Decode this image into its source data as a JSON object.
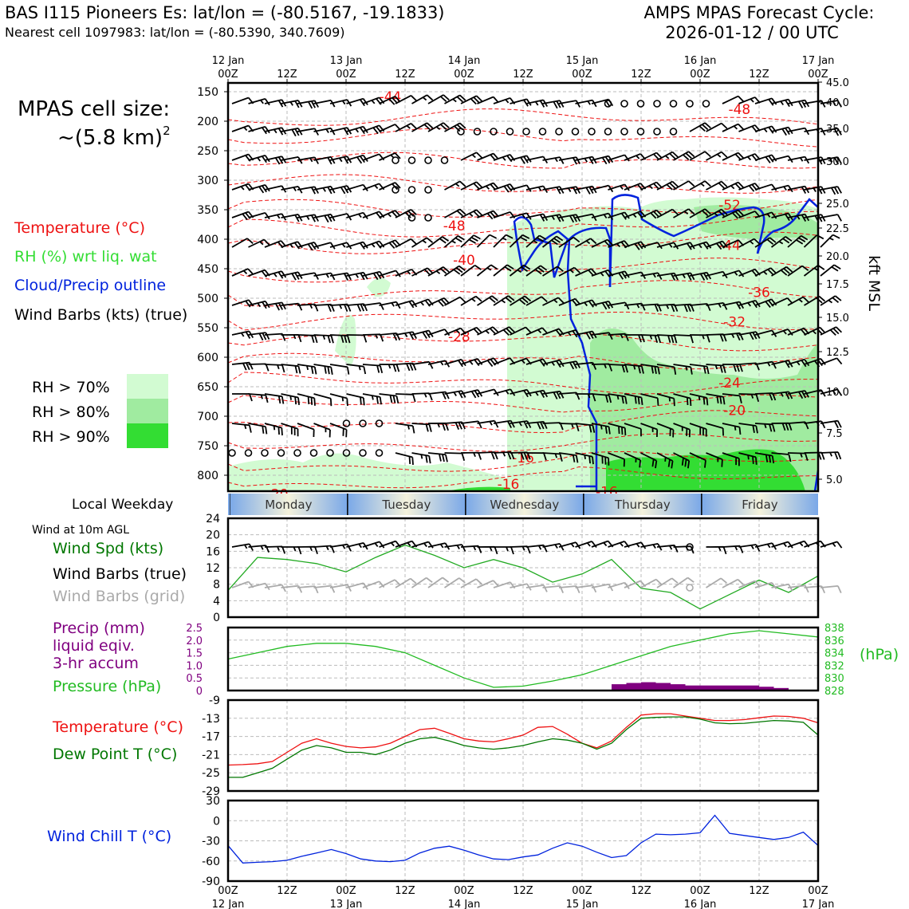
{
  "header": {
    "station": "BAS I115 Pioneers Es: lat/lon = (-80.5167, -19.1833)",
    "nearest": "Nearest cell 1097983: lat/lon = (-80.5390, 340.7609)",
    "cycle_title": "AMPS MPAS Forecast Cycle:",
    "cycle_time": "2026-01-12 / 00 UTC"
  },
  "cell_size": {
    "line1": "MPAS cell size:",
    "line2": "~(5.8 km)",
    "sup": "2"
  },
  "legend": {
    "temperature": "Temperature (°C)",
    "rh": "RH (%) wrt liq. wat",
    "cloud": "Cloud/Precip outline",
    "wind": "Wind Barbs (kts) (true)",
    "rh70": "RH > 70%",
    "rh80": "RH > 80%",
    "rh90": "RH > 90%"
  },
  "colors": {
    "rh70": "#d2fbd2",
    "rh80": "#a0eba0",
    "rh90": "#33dd33",
    "temp": "#ee1111",
    "cloud": "#0022dd",
    "grid": "#bbbbbb"
  },
  "time_axis": {
    "top_labels": [
      {
        "top": "12 Jan",
        "bot": "00Z"
      },
      {
        "top": "",
        "bot": "12Z"
      },
      {
        "top": "13 Jan",
        "bot": "00Z"
      },
      {
        "top": "",
        "bot": "12Z"
      },
      {
        "top": "14 Jan",
        "bot": "00Z"
      },
      {
        "top": "",
        "bot": "12Z"
      },
      {
        "top": "15 Jan",
        "bot": "00Z"
      },
      {
        "top": "",
        "bot": "12Z"
      },
      {
        "top": "16 Jan",
        "bot": "00Z"
      },
      {
        "top": "",
        "bot": "12Z"
      },
      {
        "top": "17 Jan",
        "bot": "00Z"
      }
    ],
    "bottom_labels": [
      {
        "top": "00Z",
        "bot": "12 Jan"
      },
      {
        "top": "12Z",
        "bot": ""
      },
      {
        "top": "00Z",
        "bot": "13 Jan"
      },
      {
        "top": "12Z",
        "bot": ""
      },
      {
        "top": "00Z",
        "bot": "14 Jan"
      },
      {
        "top": "12Z",
        "bot": ""
      },
      {
        "top": "00Z",
        "bot": "15 Jan"
      },
      {
        "top": "12Z",
        "bot": ""
      },
      {
        "top": "00Z",
        "bot": "16 Jan"
      },
      {
        "top": "12Z",
        "bot": ""
      },
      {
        "top": "00Z",
        "bot": "17 Jan"
      }
    ]
  },
  "weekday_bar": {
    "label": "Local Weekday",
    "days": [
      "Monday",
      "Tuesday",
      "Wednesday",
      "Thursday",
      "Friday"
    ]
  },
  "chart_data": [
    {
      "type": "time-height cross-section",
      "pressure_ticks": [
        150,
        200,
        250,
        300,
        350,
        400,
        450,
        500,
        550,
        600,
        650,
        700,
        750,
        800
      ],
      "kft_ticks": [
        "45.0",
        "40.0",
        "35.0",
        "30.0",
        "25.0",
        "22.5",
        "20.0",
        "17.5",
        "15.0",
        "12.5",
        "10.0",
        "7.5",
        "5.0"
      ],
      "right_label": "kft MSL",
      "temperature_labels": [
        {
          "t": "-44",
          "h": 33,
          "p": 158
        },
        {
          "t": "-48",
          "h": 104,
          "p": 180
        },
        {
          "t": "-52",
          "h": 102,
          "p": 342
        },
        {
          "t": "-48",
          "h": 46,
          "p": 377
        },
        {
          "t": "-44",
          "h": 102,
          "p": 410
        },
        {
          "t": "-40",
          "h": 48,
          "p": 435
        },
        {
          "t": "-36",
          "h": 108,
          "p": 490
        },
        {
          "t": "-32",
          "h": 103,
          "p": 540
        },
        {
          "t": "-28",
          "h": 47,
          "p": 565
        },
        {
          "t": "-24",
          "h": 102,
          "p": 643
        },
        {
          "t": "-20",
          "h": 103,
          "p": 690
        },
        {
          "t": "-16",
          "h": 60,
          "p": 770
        },
        {
          "t": "-16",
          "h": 57,
          "p": 815
        },
        {
          "t": "-16",
          "h": 77,
          "p": 828
        },
        {
          "t": "-20",
          "h": 10,
          "p": 832
        }
      ]
    },
    {
      "type": "line",
      "title_lines": [
        "Wind at 10m AGL"
      ],
      "series_labels": [
        "Wind Spd (kts)",
        "Wind Barbs (true)",
        "Wind Barbs (grid)"
      ],
      "yticks": [
        0,
        4,
        8,
        12,
        16,
        20,
        24
      ],
      "ylim": [
        0,
        24
      ],
      "x_hours": [
        0,
        6,
        12,
        18,
        24,
        30,
        36,
        42,
        48,
        54,
        60,
        66,
        72,
        78,
        84,
        90,
        96,
        102,
        108,
        114,
        120
      ],
      "series": [
        {
          "name": "Wind Spd (kts)",
          "values": [
            6.5,
            14.5,
            14,
            13,
            11,
            14.5,
            17.5,
            15,
            12,
            14,
            12,
            8.5,
            10.5,
            14,
            7,
            6,
            2,
            5.5,
            9,
            6,
            10
          ]
        }
      ]
    },
    {
      "type": "line",
      "series_labels": [
        "Precip (mm)",
        "liquid eqiv.",
        "3-hr accum",
        "Pressure (hPa)"
      ],
      "left_ticks": [
        "0",
        "0.5",
        "1.0",
        "1.5",
        "2.0",
        "2.5"
      ],
      "right_ticks": [
        "828",
        "830",
        "832",
        "834",
        "836",
        "838"
      ],
      "right_label": "(hPa)",
      "pressure_x_hours": [
        0,
        6,
        12,
        18,
        24,
        30,
        36,
        42,
        48,
        54,
        60,
        66,
        72,
        78,
        84,
        90,
        96,
        102,
        108,
        114,
        120
      ],
      "pressure_values": [
        833,
        834,
        835,
        835.5,
        835.5,
        835,
        834,
        832,
        830,
        828.5,
        828.7,
        829.5,
        830.5,
        832,
        833.5,
        835,
        836,
        837,
        837.5,
        837,
        836.5
      ],
      "precip_x_hours": [
        78,
        81,
        84,
        87,
        90,
        93,
        96,
        99,
        102,
        105,
        108,
        111
      ],
      "precip_values": [
        0.25,
        0.3,
        0.33,
        0.3,
        0.25,
        0.2,
        0.2,
        0.2,
        0.2,
        0.2,
        0.15,
        0.1
      ]
    },
    {
      "type": "line",
      "series_labels": [
        "Temperature (°C)",
        "Dew Point T (°C)"
      ],
      "yticks": [
        -29,
        -25,
        -21,
        -17,
        -13,
        -9
      ],
      "ylim": [
        -29,
        -9
      ],
      "x_hours": [
        0,
        3,
        6,
        9,
        12,
        15,
        18,
        21,
        24,
        27,
        30,
        33,
        36,
        39,
        42,
        45,
        48,
        51,
        54,
        57,
        60,
        63,
        66,
        69,
        72,
        75,
        78,
        81,
        84,
        87,
        90,
        93,
        96,
        99,
        102,
        105,
        108,
        111,
        114,
        117,
        120
      ],
      "series": [
        {
          "name": "Temperature (°C)",
          "values": [
            -23.3,
            -23.2,
            -23,
            -22.5,
            -20.5,
            -18.5,
            -17.5,
            -18.5,
            -19.2,
            -19.5,
            -19.3,
            -18.5,
            -17,
            -15.5,
            -15.2,
            -16.3,
            -17.5,
            -18,
            -18.2,
            -17.5,
            -16.7,
            -15,
            -14.8,
            -16.5,
            -18.5,
            -19.5,
            -18,
            -15,
            -12.3,
            -12,
            -12,
            -12.5,
            -13,
            -13.5,
            -13.5,
            -13.3,
            -12.9,
            -12.5,
            -12.6,
            -13,
            -14
          ]
        },
        {
          "name": "Dew Point T (°C)",
          "values": [
            -26,
            -26,
            -25,
            -24,
            -22,
            -20,
            -19,
            -19.5,
            -20.5,
            -20.5,
            -21,
            -20,
            -18.5,
            -17.5,
            -17.2,
            -18,
            -19,
            -19.5,
            -19.8,
            -19.5,
            -19,
            -18.2,
            -17.5,
            -17.8,
            -18.5,
            -19.8,
            -18.5,
            -15.5,
            -13,
            -12.8,
            -12.7,
            -12.7,
            -13.2,
            -14,
            -14.2,
            -14.1,
            -13.8,
            -13.5,
            -13.6,
            -13.9,
            -16.7
          ]
        }
      ]
    },
    {
      "type": "line",
      "series_labels": [
        "Wind Chill T (°C)"
      ],
      "yticks": [
        -90,
        -60,
        -30,
        0,
        30
      ],
      "ylim": [
        -90,
        30
      ],
      "x_hours": [
        0,
        3,
        6,
        9,
        12,
        15,
        18,
        21,
        24,
        27,
        30,
        33,
        36,
        39,
        42,
        45,
        48,
        51,
        54,
        57,
        60,
        63,
        66,
        69,
        72,
        75,
        78,
        81,
        84,
        87,
        90,
        93,
        96,
        99,
        102,
        105,
        108,
        111,
        114,
        117,
        120
      ],
      "series": [
        {
          "name": "Wind Chill T (°C)",
          "values": [
            -37,
            -63,
            -62,
            -61,
            -59,
            -53,
            -48,
            -43,
            -49,
            -57,
            -60,
            -61,
            -59,
            -48,
            -41,
            -38,
            -44,
            -51,
            -57,
            -58,
            -54,
            -51,
            -41,
            -33,
            -38,
            -47,
            -55,
            -52,
            -33,
            -20,
            -21,
            -20,
            -18,
            8,
            -19,
            -22,
            -25,
            -28,
            -25,
            -17,
            -37
          ]
        }
      ]
    }
  ]
}
